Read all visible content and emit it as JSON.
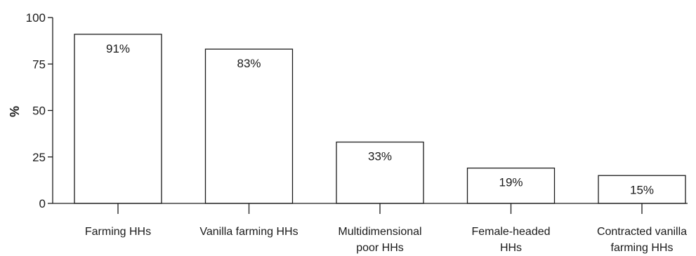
{
  "chart_data": {
    "type": "bar",
    "title": "",
    "xlabel": "",
    "ylabel": "%",
    "ylim": [
      0,
      100
    ],
    "yticks": [
      0,
      25,
      50,
      75,
      100
    ],
    "grid": false,
    "categories": [
      [
        "Farming HHs"
      ],
      [
        "Vanilla farming HHs"
      ],
      [
        "Multidimensional",
        "poor HHs"
      ],
      [
        "Female-headed",
        "HHs"
      ],
      [
        "Contracted vanilla",
        "farming HHs"
      ]
    ],
    "values": [
      91,
      83,
      33,
      19,
      15
    ],
    "data_labels": [
      "91%",
      "83%",
      "33%",
      "19%",
      "15%"
    ],
    "colors": {
      "bar_fill": "#ffffff",
      "bar_stroke": "#1a1a1a",
      "text": "#1a1a1a"
    }
  }
}
